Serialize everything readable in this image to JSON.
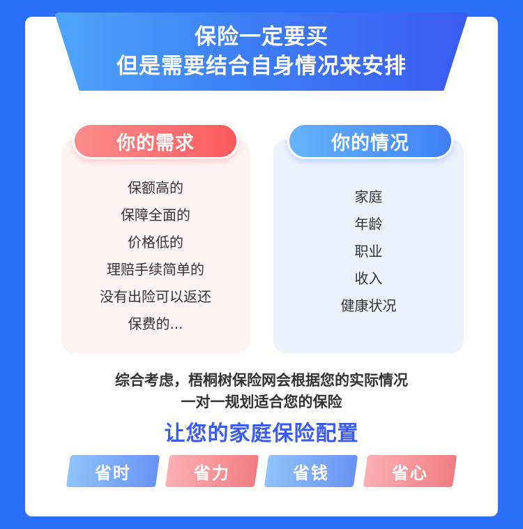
{
  "banner": {
    "line1": "保险一定要买",
    "line2": "但是需要结合自身情况来安排"
  },
  "needs": {
    "title": "你的需求",
    "items": [
      "保额高的",
      "保障全面的",
      "价格低的",
      "理赔手续简单的",
      "没有出险可以返还",
      "保费的..."
    ]
  },
  "situation": {
    "title": "你的情况",
    "items": [
      "家庭",
      "年龄",
      "职业",
      "收入",
      "健康状况"
    ]
  },
  "summary": {
    "line1": "综合考虑，梧桐树保险网会根据您的实际情况",
    "line2": "一对一规划适合您的保险"
  },
  "tagline": "让您的家庭保险配置",
  "tags": [
    "省时",
    "省力",
    "省钱",
    "省心"
  ],
  "colors": {
    "background": "#2b6ef7",
    "accent_blue": "#3a5bf1",
    "accent_red": "#fa5a5c"
  }
}
